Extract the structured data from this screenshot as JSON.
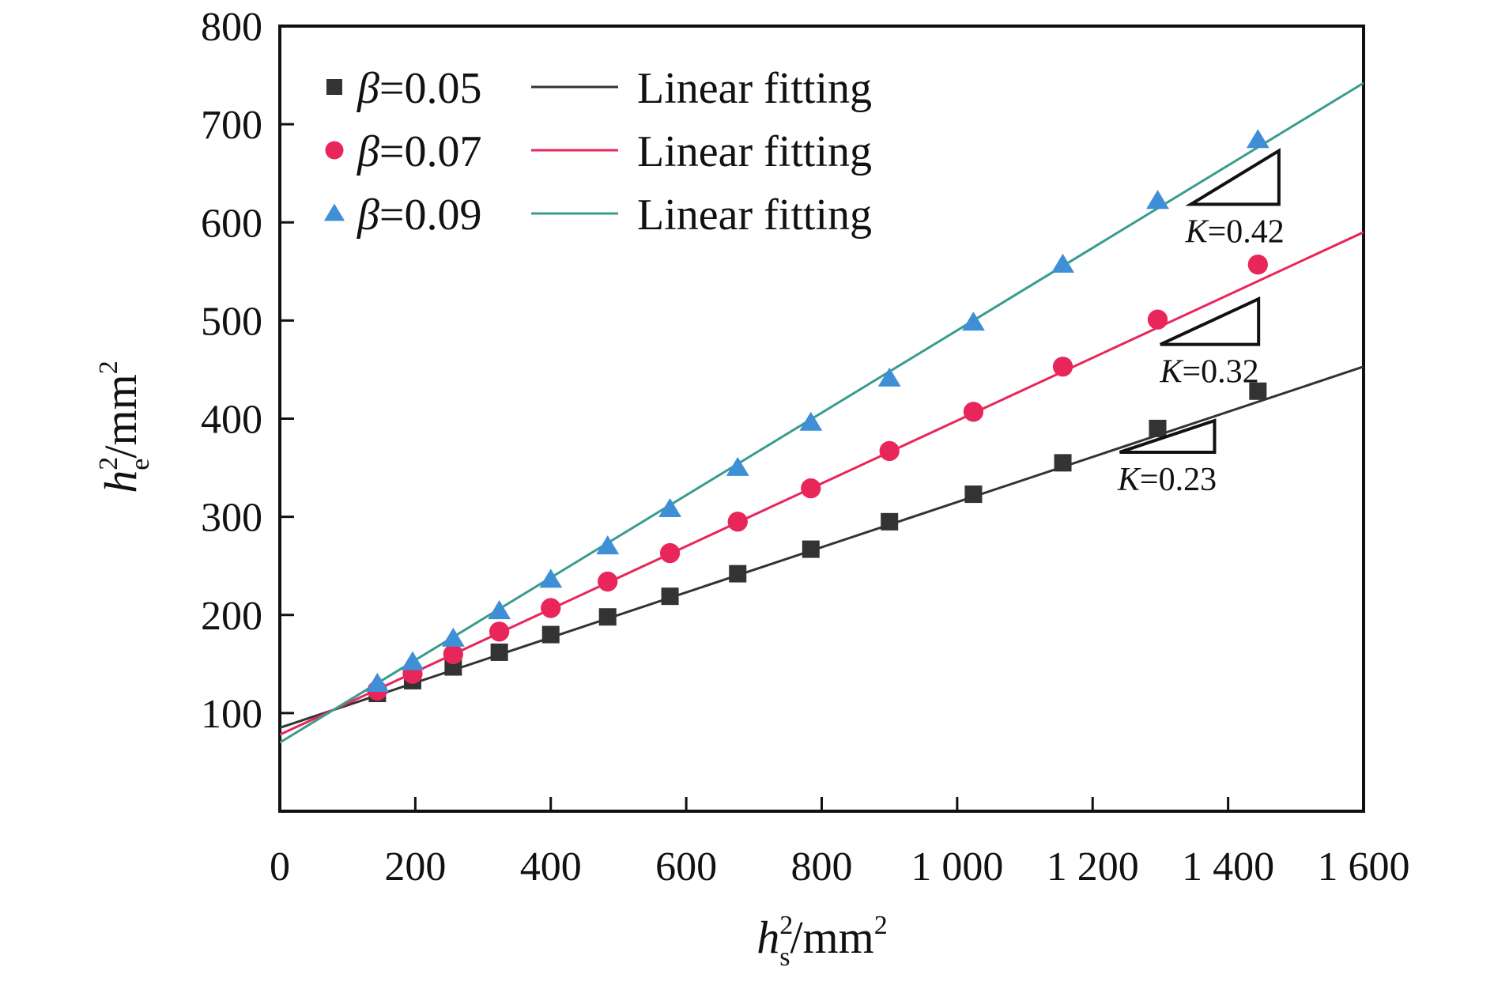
{
  "chart_data": {
    "type": "scatter",
    "xlabel": {
      "base": "h",
      "sup": "2",
      "sub": "s",
      "unit": "/mm",
      "unit_sup": "2"
    },
    "ylabel": {
      "base": "h",
      "sup": "2",
      "sub": "e",
      "unit": "/mm",
      "unit_sup": "2"
    },
    "xlim": [
      0,
      1600
    ],
    "ylim": [
      0,
      800
    ],
    "x_ticks": [
      0,
      200,
      400,
      600,
      800,
      1000,
      1200,
      1400,
      1600
    ],
    "x_tick_labels": [
      "0",
      "200",
      "400",
      "600",
      "800",
      "1 000",
      "1 200",
      "1 400",
      "1 600"
    ],
    "y_ticks": [
      100,
      200,
      300,
      400,
      500,
      600,
      700,
      800
    ],
    "y_tick_labels": [
      "100",
      "200",
      "300",
      "400",
      "500",
      "600",
      "700",
      "800"
    ],
    "grid": false,
    "legend_position": "top-left",
    "fit_label": "Linear fitting",
    "series": [
      {
        "name": "β=0.05",
        "beta_symbol": "β",
        "beta_value": "=0.05",
        "marker": "square",
        "marker_color": "#333333",
        "line_color": "#333333",
        "x": [
          144,
          196,
          256,
          324,
          400,
          484,
          576,
          676,
          784,
          900,
          1024,
          1156,
          1296,
          1444
        ],
        "y": [
          120,
          133,
          147,
          162,
          180,
          198,
          219,
          242,
          267,
          295,
          323,
          355,
          390,
          428
        ],
        "fit": {
          "slope": 0.23,
          "intercept": 85
        },
        "k_label": {
          "symbol": "K",
          "value": "=0.23"
        }
      },
      {
        "name": "β=0.07",
        "beta_symbol": "β",
        "beta_value": "=0.07",
        "marker": "circle",
        "marker_color": "#e8265a",
        "line_color": "#e8265a",
        "x": [
          144,
          196,
          256,
          324,
          400,
          484,
          576,
          676,
          784,
          900,
          1024,
          1156,
          1296,
          1444
        ],
        "y": [
          123,
          140,
          160,
          183,
          207,
          234,
          263,
          295,
          329,
          367,
          407,
          453,
          501,
          557
        ],
        "fit": {
          "slope": 0.32,
          "intercept": 78
        },
        "k_label": {
          "symbol": "K",
          "value": "=0.32"
        }
      },
      {
        "name": "β=0.09",
        "beta_symbol": "β",
        "beta_value": "=0.09",
        "marker": "triangle",
        "marker_color": "#3f8fd6",
        "line_color": "#3a9c8e",
        "x": [
          144,
          196,
          256,
          324,
          400,
          484,
          576,
          676,
          784,
          900,
          1024,
          1156,
          1296,
          1444
        ],
        "y": [
          130,
          152,
          176,
          204,
          236,
          270,
          308,
          350,
          396,
          441,
          498,
          557,
          622,
          684
        ],
        "fit": {
          "slope": 0.42,
          "intercept": 70
        },
        "k_label": {
          "symbol": "K",
          "value": "=0.42"
        }
      }
    ]
  }
}
